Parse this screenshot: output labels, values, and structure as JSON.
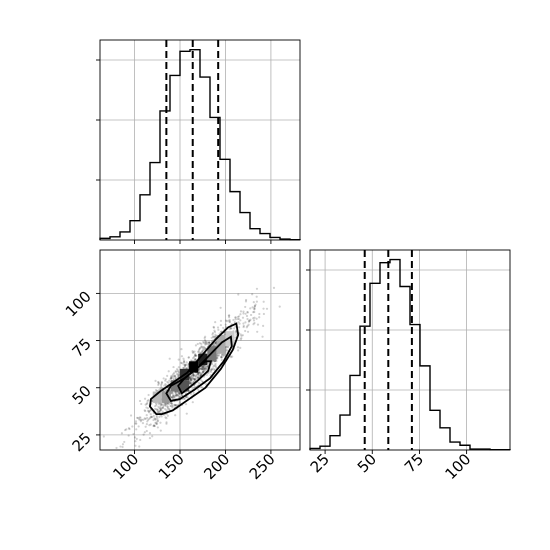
{
  "chart_data": [
    {
      "type": "histogram",
      "panel": "top-left",
      "xlim": [
        62,
        282
      ],
      "xticks": [
        100,
        150,
        200,
        250
      ],
      "grid": true,
      "bins": [
        {
          "x0": 62,
          "x1": 73,
          "count": 5
        },
        {
          "x0": 73,
          "x1": 84,
          "count": 10
        },
        {
          "x0": 84,
          "x1": 95,
          "count": 25
        },
        {
          "x0": 95,
          "x1": 106,
          "count": 60
        },
        {
          "x0": 106,
          "x1": 117,
          "count": 140
        },
        {
          "x0": 117,
          "x1": 128,
          "count": 240
        },
        {
          "x0": 128,
          "x1": 139,
          "count": 400
        },
        {
          "x0": 139,
          "x1": 150,
          "count": 510
        },
        {
          "x0": 150,
          "x1": 161,
          "count": 585
        },
        {
          "x0": 161,
          "x1": 172,
          "count": 590
        },
        {
          "x0": 172,
          "x1": 183,
          "count": 505
        },
        {
          "x0": 183,
          "x1": 194,
          "count": 380
        },
        {
          "x0": 194,
          "x1": 205,
          "count": 250
        },
        {
          "x0": 205,
          "x1": 216,
          "count": 150
        },
        {
          "x0": 216,
          "x1": 227,
          "count": 85
        },
        {
          "x0": 227,
          "x1": 238,
          "count": 35
        },
        {
          "x0": 238,
          "x1": 249,
          "count": 20
        },
        {
          "x0": 249,
          "x1": 260,
          "count": 8
        },
        {
          "x0": 260,
          "x1": 271,
          "count": 3
        },
        {
          "x0": 271,
          "x1": 282,
          "count": 1
        }
      ],
      "ymax": 620,
      "quantile_lines": [
        135,
        164,
        192
      ]
    },
    {
      "type": "scatter",
      "panel": "bottom-left",
      "xlim": [
        62,
        282
      ],
      "ylim": [
        17,
        123
      ],
      "xticks": [
        100,
        150,
        200,
        250
      ],
      "yticks": [
        25,
        50,
        75,
        100
      ],
      "grid": true,
      "points": {
        "n": 1500,
        "x_mean": 164,
        "x_sd": 30,
        "y_mean": 58,
        "y_sd": 15,
        "correlation": 0.93,
        "seed": 7
      },
      "density_cells": [
        {
          "x": 160,
          "y": 58,
          "w": 10,
          "h": 6,
          "shade": "#000000"
        },
        {
          "x": 170,
          "y": 62,
          "w": 10,
          "h": 6,
          "shade": "#202020"
        },
        {
          "x": 150,
          "y": 54,
          "w": 10,
          "h": 6,
          "shade": "#303030"
        },
        {
          "x": 150,
          "y": 48,
          "w": 10,
          "h": 6,
          "shade": "#555555"
        },
        {
          "x": 140,
          "y": 48,
          "w": 10,
          "h": 6,
          "shade": "#777777"
        },
        {
          "x": 180,
          "y": 64,
          "w": 10,
          "h": 8,
          "shade": "#777777"
        },
        {
          "x": 190,
          "y": 68,
          "w": 10,
          "h": 10,
          "shade": "#aaaaaa"
        },
        {
          "x": 130,
          "y": 42,
          "w": 10,
          "h": 6,
          "shade": "#999999"
        },
        {
          "x": 120,
          "y": 42,
          "w": 10,
          "h": 6,
          "shade": "#bbbbbb"
        },
        {
          "x": 200,
          "y": 72,
          "w": 10,
          "h": 8,
          "shade": "#cccccc"
        }
      ],
      "contours": [
        [
          [
            124,
            36
          ],
          [
            117,
            40
          ],
          [
            118,
            44
          ],
          [
            128,
            48
          ],
          [
            143,
            53
          ],
          [
            158,
            58
          ],
          [
            172,
            66
          ],
          [
            190,
            76
          ],
          [
            203,
            82
          ],
          [
            212,
            84
          ],
          [
            214,
            78
          ],
          [
            208,
            70
          ],
          [
            195,
            60
          ],
          [
            178,
            50
          ],
          [
            160,
            44
          ],
          [
            142,
            38
          ],
          [
            130,
            36
          ],
          [
            124,
            36
          ]
        ],
        [
          [
            140,
            43
          ],
          [
            135,
            47
          ],
          [
            140,
            51
          ],
          [
            155,
            55
          ],
          [
            168,
            60
          ],
          [
            182,
            67
          ],
          [
            196,
            74
          ],
          [
            206,
            77
          ],
          [
            207,
            72
          ],
          [
            198,
            64
          ],
          [
            183,
            55
          ],
          [
            166,
            49
          ],
          [
            150,
            44
          ],
          [
            140,
            43
          ]
        ],
        [
          [
            152,
            47
          ],
          [
            148,
            51
          ],
          [
            155,
            55
          ],
          [
            168,
            60
          ],
          [
            178,
            64
          ],
          [
            184,
            64
          ],
          [
            181,
            59
          ],
          [
            170,
            54
          ],
          [
            160,
            50
          ],
          [
            152,
            47
          ]
        ]
      ]
    },
    {
      "type": "histogram",
      "panel": "bottom-right",
      "xlim": [
        17,
        123
      ],
      "xticks": [
        25,
        50,
        75,
        100
      ],
      "grid": true,
      "bins": [
        {
          "x0": 17,
          "x1": 22.3,
          "count": 5
        },
        {
          "x0": 22.3,
          "x1": 27.6,
          "count": 12
        },
        {
          "x0": 27.6,
          "x1": 32.9,
          "count": 45
        },
        {
          "x0": 32.9,
          "x1": 38.2,
          "count": 110
        },
        {
          "x0": 38.2,
          "x1": 43.5,
          "count": 235
        },
        {
          "x0": 43.5,
          "x1": 48.8,
          "count": 390
        },
        {
          "x0": 48.8,
          "x1": 54.1,
          "count": 525
        },
        {
          "x0": 54.1,
          "x1": 59.4,
          "count": 590
        },
        {
          "x0": 59.4,
          "x1": 64.7,
          "count": 600
        },
        {
          "x0": 64.7,
          "x1": 70.0,
          "count": 515
        },
        {
          "x0": 70.0,
          "x1": 75.3,
          "count": 395
        },
        {
          "x0": 75.3,
          "x1": 80.6,
          "count": 265
        },
        {
          "x0": 80.6,
          "x1": 85.9,
          "count": 125
        },
        {
          "x0": 85.9,
          "x1": 91.2,
          "count": 70
        },
        {
          "x0": 91.2,
          "x1": 96.5,
          "count": 25
        },
        {
          "x0": 96.5,
          "x1": 101.8,
          "count": 15
        },
        {
          "x0": 101.8,
          "x1": 107.1,
          "count": 3
        },
        {
          "x0": 107.1,
          "x1": 112.4,
          "count": 3
        },
        {
          "x0": 112.4,
          "x1": 117.7,
          "count": 1
        },
        {
          "x0": 117.7,
          "x1": 123,
          "count": 1
        }
      ],
      "ymax": 630,
      "quantile_lines": [
        46,
        58.5,
        71
      ]
    }
  ]
}
